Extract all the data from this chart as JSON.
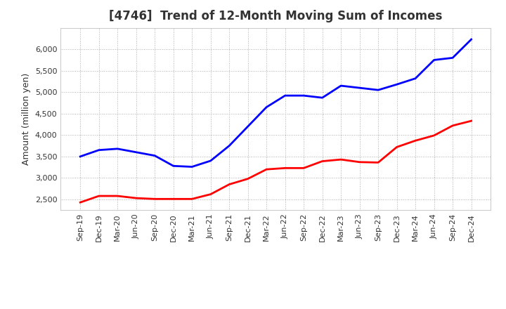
{
  "title": "[4746]  Trend of 12-Month Moving Sum of Incomes",
  "ylabel": "Amount (million yen)",
  "background_color": "#ffffff",
  "plot_bg_color": "#ffffff",
  "grid_color": "#999999",
  "x_labels": [
    "Sep-19",
    "Dec-19",
    "Mar-20",
    "Jun-20",
    "Sep-20",
    "Dec-20",
    "Mar-21",
    "Jun-21",
    "Sep-21",
    "Dec-21",
    "Mar-22",
    "Jun-22",
    "Sep-22",
    "Dec-22",
    "Mar-23",
    "Jun-23",
    "Sep-23",
    "Dec-23",
    "Mar-24",
    "Jun-24",
    "Sep-24",
    "Dec-24"
  ],
  "ordinary_income": [
    3500,
    3650,
    3680,
    3600,
    3520,
    3280,
    3260,
    3400,
    3750,
    4200,
    4650,
    4920,
    4920,
    4870,
    5150,
    5100,
    5050,
    5180,
    5320,
    5750,
    5800,
    6230
  ],
  "net_income": [
    2430,
    2580,
    2580,
    2530,
    2510,
    2510,
    2510,
    2620,
    2850,
    2980,
    3200,
    3230,
    3230,
    3390,
    3430,
    3370,
    3360,
    3720,
    3870,
    3990,
    4220,
    4330
  ],
  "ordinary_color": "#0000ff",
  "net_color": "#ff0000",
  "ylim_min": 2250,
  "ylim_max": 6500,
  "yticks": [
    2500,
    3000,
    3500,
    4000,
    4500,
    5000,
    5500,
    6000
  ],
  "line_width": 2.0,
  "title_fontsize": 12,
  "tick_fontsize": 8,
  "ylabel_fontsize": 9,
  "legend_fontsize": 10,
  "title_color": "#333333"
}
